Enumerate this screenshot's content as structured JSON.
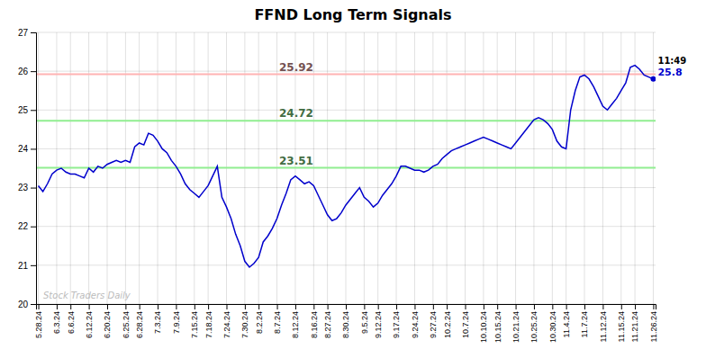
{
  "chart_data": {
    "type": "line",
    "title": "FFND Long Term Signals",
    "color": "#0000cc",
    "categories": [
      "5.28.24",
      null,
      null,
      null,
      "6.3.24",
      null,
      null,
      "6.6.24",
      null,
      null,
      null,
      "6.12.24",
      null,
      null,
      null,
      "6.20.24",
      null,
      null,
      null,
      "6.25.24",
      null,
      null,
      "6.28.24",
      null,
      null,
      null,
      "7.3.24",
      null,
      null,
      null,
      "7.9.24",
      null,
      null,
      null,
      "7.15.24",
      null,
      null,
      "7.18.24",
      null,
      null,
      null,
      "7.24.24",
      null,
      null,
      null,
      "7.30.24",
      null,
      null,
      "8.2.24",
      null,
      null,
      null,
      "8.7.24",
      null,
      null,
      null,
      "8.12.24",
      null,
      null,
      null,
      "8.16.24",
      null,
      null,
      "8.27.24",
      null,
      null,
      null,
      "8.30.24",
      null,
      null,
      null,
      "9.5.24",
      null,
      null,
      "9.12.24",
      null,
      null,
      null,
      "9.17.24",
      null,
      null,
      null,
      "9.24.24",
      null,
      null,
      null,
      "9.27.24",
      null,
      null,
      "10.2.24",
      null,
      null,
      null,
      "10.7.24",
      null,
      null,
      null,
      "10.10.24",
      null,
      null,
      "10.15.24",
      null,
      null,
      null,
      "10.21.24",
      null,
      null,
      null,
      "10.25.24",
      null,
      null,
      null,
      "10.30.24",
      null,
      null,
      "11.4.24",
      null,
      null,
      null,
      "11.7.24",
      null,
      null,
      null,
      "11.12.24",
      null,
      null,
      null,
      "11.15.24",
      null,
      null,
      "11.21.24",
      null,
      null,
      null,
      "11.26.24"
    ],
    "values": [
      23.05,
      22.9,
      23.1,
      23.35,
      23.45,
      23.5,
      23.4,
      23.35,
      23.35,
      23.3,
      23.25,
      23.5,
      23.4,
      23.55,
      23.5,
      23.6,
      23.65,
      23.7,
      23.65,
      23.7,
      23.65,
      24.05,
      24.15,
      24.1,
      24.4,
      24.35,
      24.2,
      24.0,
      23.9,
      23.7,
      23.55,
      23.35,
      23.1,
      22.95,
      22.85,
      22.75,
      22.9,
      23.05,
      23.3,
      23.55,
      22.75,
      22.5,
      22.2,
      21.8,
      21.5,
      21.1,
      20.95,
      21.05,
      21.2,
      21.6,
      21.75,
      21.95,
      22.2,
      22.55,
      22.85,
      23.2,
      23.3,
      23.2,
      23.1,
      23.15,
      23.05,
      22.8,
      22.55,
      22.3,
      22.15,
      22.2,
      22.35,
      22.55,
      22.7,
      22.85,
      23.0,
      22.75,
      22.65,
      22.5,
      22.6,
      22.8,
      22.95,
      23.1,
      23.3,
      23.55,
      23.55,
      23.5,
      23.45,
      23.45,
      23.4,
      23.45,
      23.55,
      23.6,
      23.75,
      23.85,
      23.95,
      24.0,
      24.05,
      24.1,
      24.15,
      24.2,
      24.25,
      24.3,
      24.25,
      24.2,
      24.15,
      24.1,
      24.05,
      24.0,
      24.15,
      24.3,
      24.45,
      24.6,
      24.75,
      24.8,
      24.75,
      24.65,
      24.5,
      24.2,
      24.05,
      24.0,
      25.0,
      25.5,
      25.85,
      25.9,
      25.8,
      25.6,
      25.35,
      25.1,
      25.0,
      25.15,
      25.3,
      25.5,
      25.7,
      26.1,
      26.15,
      26.05,
      25.9,
      25.85,
      25.8
    ],
    "ylim": [
      20,
      27
    ],
    "yticks": [
      20,
      21,
      22,
      23,
      24,
      25,
      26,
      27
    ],
    "grid": true,
    "hlines": [
      {
        "value": 25.92,
        "color": "#ffb3b3"
      },
      {
        "value": 24.72,
        "color": "#90ee90"
      },
      {
        "value": 23.51,
        "color": "#90ee90"
      }
    ],
    "end_annotations": [
      "11:49",
      "25.8"
    ],
    "watermark": {
      "text": "Stock Traders Daily",
      "color": "#bbbbbb"
    }
  }
}
